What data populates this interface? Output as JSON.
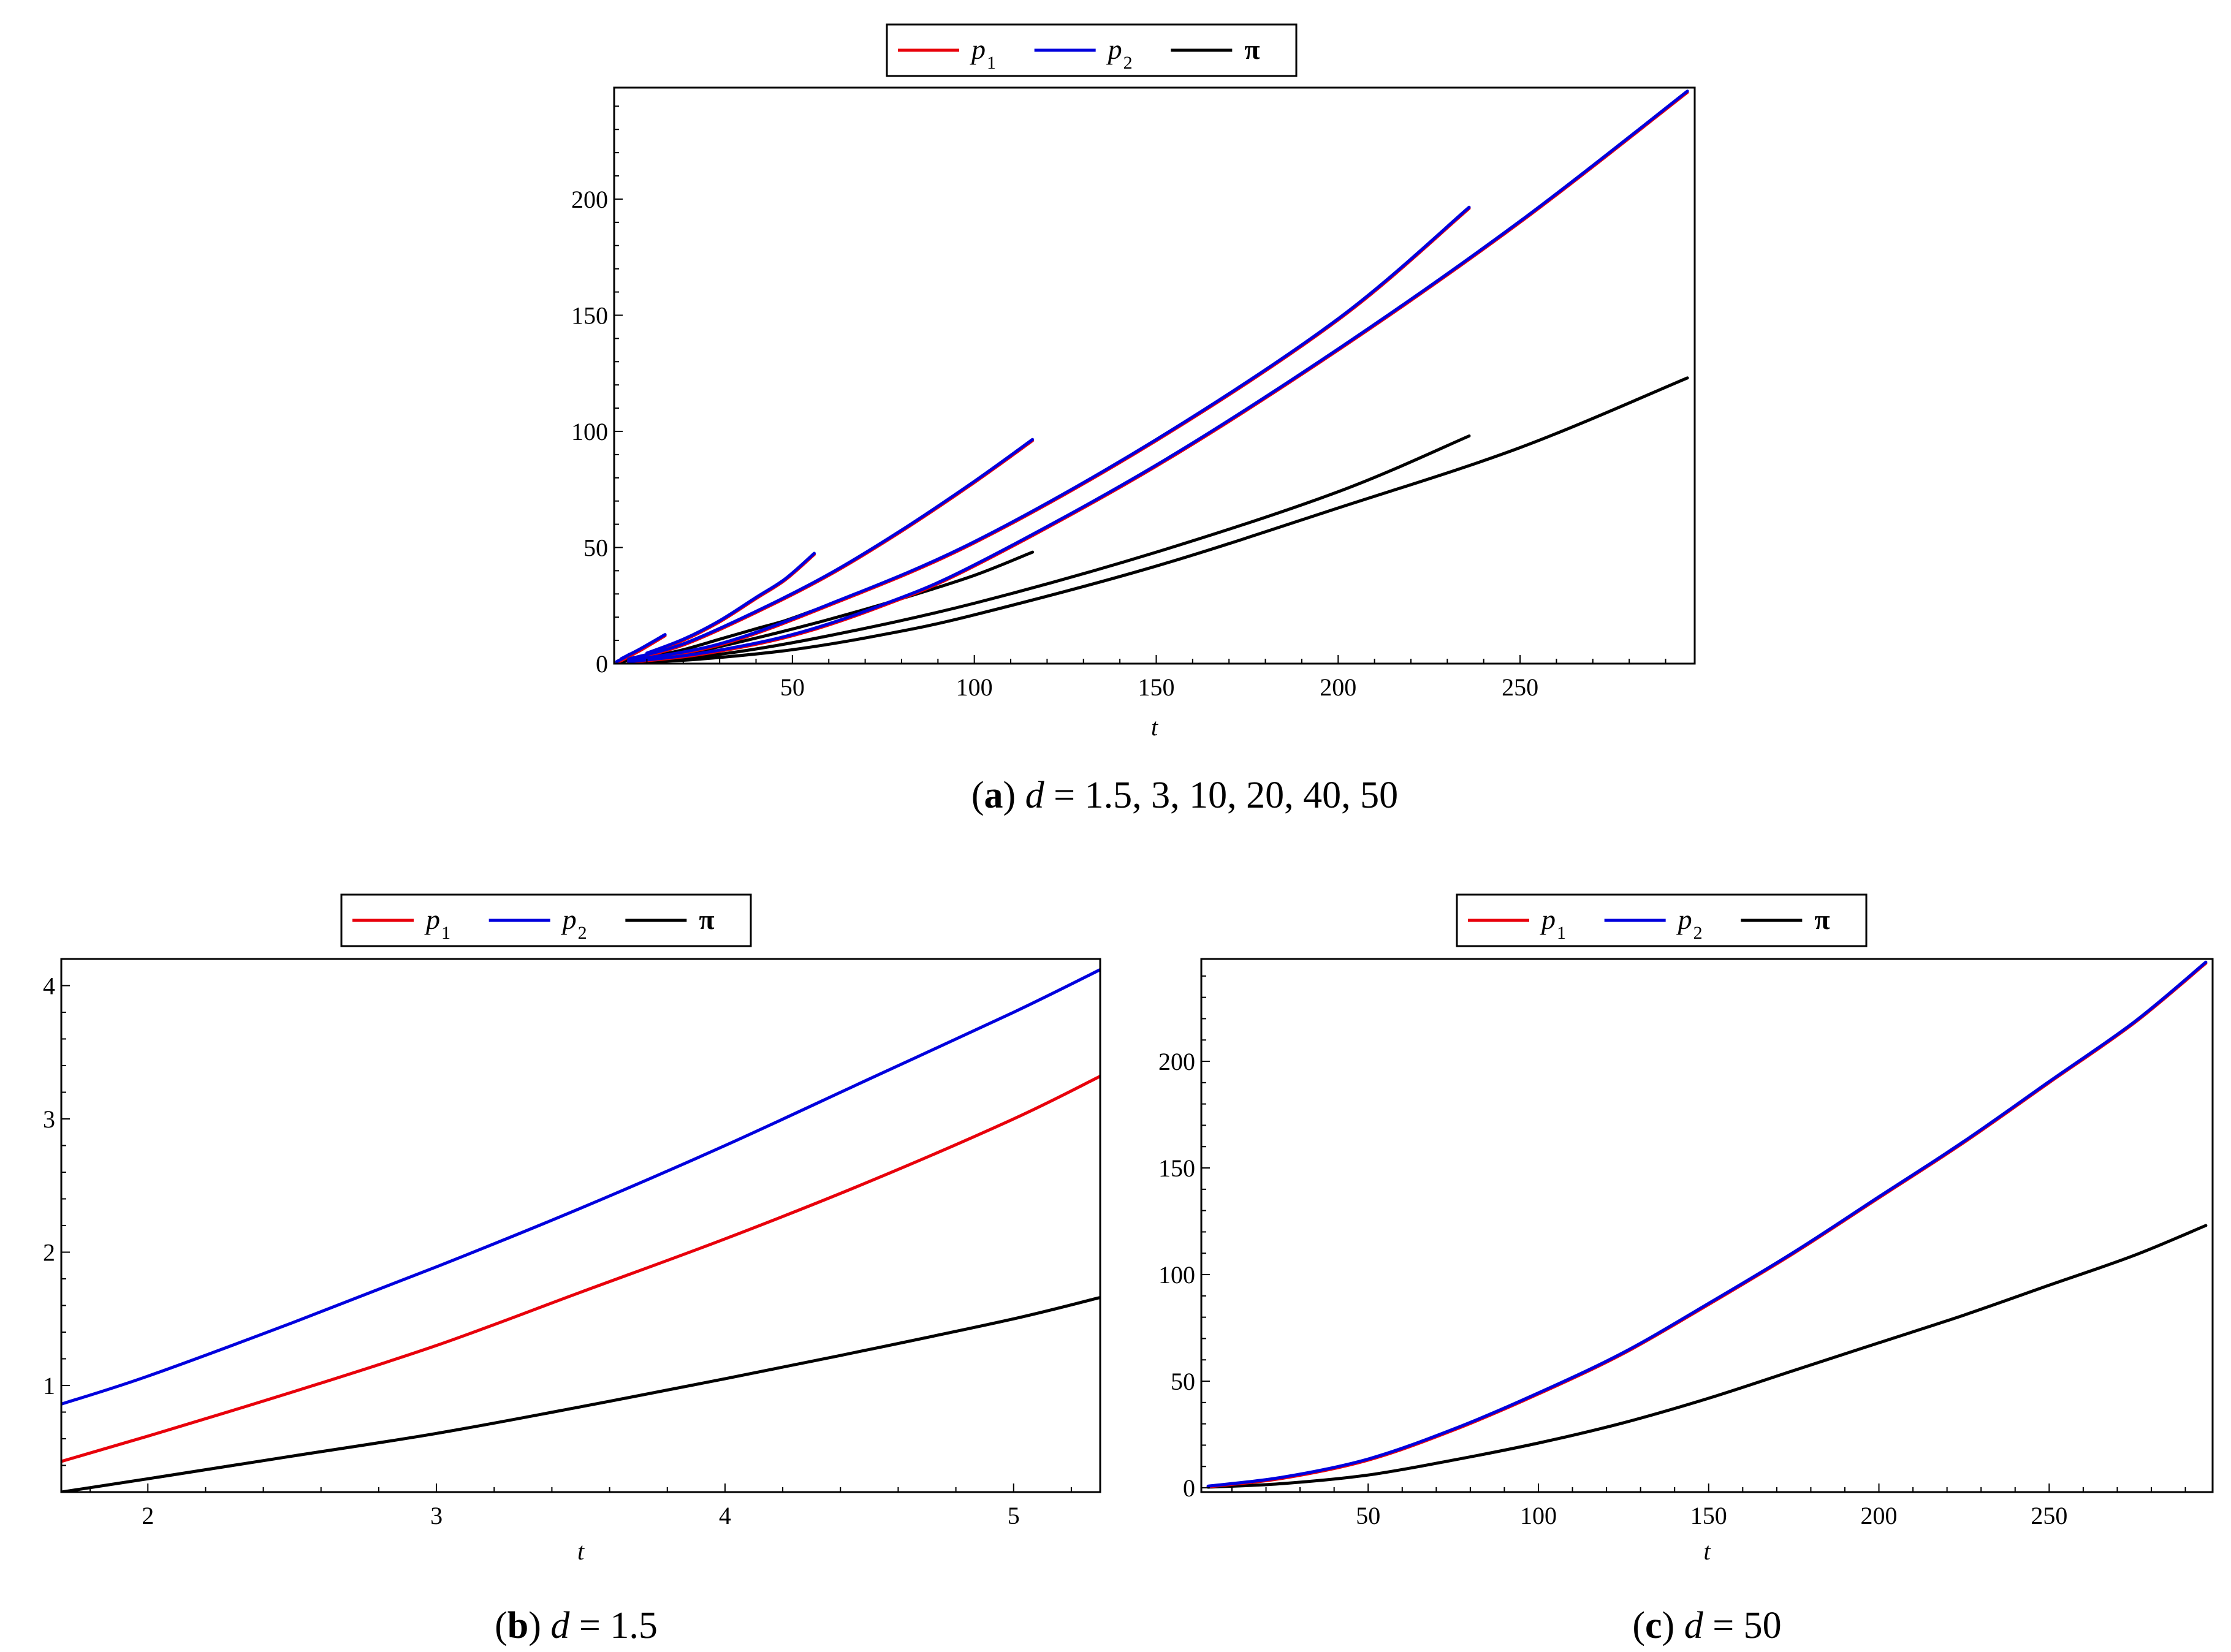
{
  "figure": {
    "legend": {
      "entries": [
        {
          "main": "p",
          "sub": "1",
          "color": "#e8000b"
        },
        {
          "main": "p",
          "sub": "2",
          "color": "#0000dd"
        },
        {
          "main": "π",
          "sub": "",
          "color": "#000000"
        }
      ]
    },
    "captions": {
      "a": {
        "open": "(",
        "letter": "a",
        "close": ")",
        "var": "d",
        "rest": " = 1.5, 3, 10, 20, 40, 50"
      },
      "b": {
        "open": "(",
        "letter": "b",
        "close": ")",
        "var": "d",
        "rest": " = 1.5"
      },
      "c": {
        "open": "(",
        "letter": "c",
        "close": ")",
        "var": "d",
        "rest": " = 50"
      }
    }
  },
  "chart_data": [
    {
      "id": "a",
      "type": "line",
      "xlabel": "t",
      "ylabel": "",
      "xlim": [
        1,
        298
      ],
      "ylim": [
        0,
        248
      ],
      "xticks": [
        50,
        100,
        150,
        200,
        250
      ],
      "yticks": [
        0,
        50,
        100,
        150,
        200
      ],
      "xminor": 10,
      "yminor": 10,
      "series": [
        {
          "name": "p1",
          "color": "#e8000b",
          "x": [
            1.7,
            3,
            4,
            5.3
          ],
          "y": [
            0.43,
            1.3,
            2.1,
            3.3
          ]
        },
        {
          "name": "p2",
          "color": "#0000dd",
          "x": [
            1.7,
            3,
            4,
            5.3
          ],
          "y": [
            0.86,
            1.95,
            2.85,
            4.1
          ]
        },
        {
          "name": "π",
          "color": "#000000",
          "x": [
            1.7,
            3,
            4,
            5.3
          ],
          "y": [
            0.2,
            0.65,
            1.05,
            1.65
          ]
        },
        {
          "name": "p1",
          "color": "#e8000b",
          "x": [
            3,
            8,
            15
          ],
          "y": [
            1.5,
            5.5,
            12
          ]
        },
        {
          "name": "p2",
          "color": "#0000dd",
          "x": [
            3,
            8,
            15
          ],
          "y": [
            2.2,
            6.2,
            12.5
          ]
        },
        {
          "name": "π",
          "color": "#000000",
          "x": [
            3,
            8,
            15
          ],
          "y": [
            0.8,
            2.8,
            6
          ]
        },
        {
          "name": "p1",
          "color": "#e8000b",
          "x": [
            10,
            20,
            30,
            40,
            48,
            56
          ],
          "y": [
            4,
            10,
            18,
            28,
            36,
            47
          ]
        },
        {
          "name": "p2",
          "color": "#0000dd",
          "x": [
            10,
            20,
            30,
            40,
            48,
            56
          ],
          "y": [
            4.5,
            10.5,
            18.5,
            28.5,
            36.5,
            47.5
          ]
        },
        {
          "name": "π",
          "color": "#000000",
          "x": [
            10,
            20,
            30,
            40,
            48,
            56
          ],
          "y": [
            2.5,
            6,
            10.5,
            15,
            18.5,
            23
          ]
        },
        {
          "name": "p1",
          "color": "#e8000b",
          "x": [
            5,
            20,
            40,
            60,
            80,
            100,
            116
          ],
          "y": [
            1.5,
            8,
            22,
            38,
            57,
            78,
            96
          ]
        },
        {
          "name": "p2",
          "color": "#0000dd",
          "x": [
            5,
            20,
            40,
            60,
            80,
            100,
            116
          ],
          "y": [
            2,
            8.5,
            22.5,
            38.5,
            57.5,
            78.5,
            96.5
          ]
        },
        {
          "name": "π",
          "color": "#000000",
          "x": [
            5,
            20,
            40,
            60,
            80,
            100,
            116
          ],
          "y": [
            0.8,
            4,
            11,
            19,
            28,
            38,
            48
          ]
        },
        {
          "name": "p1",
          "color": "#e8000b",
          "x": [
            5,
            30,
            60,
            100,
            150,
            200,
            236
          ],
          "y": [
            1,
            8,
            25,
            52,
            96,
            148,
            196
          ]
        },
        {
          "name": "p2",
          "color": "#0000dd",
          "x": [
            5,
            30,
            60,
            100,
            150,
            200,
            236
          ],
          "y": [
            1.3,
            8.5,
            25.5,
            52.5,
            96.5,
            148.5,
            196.5
          ]
        },
        {
          "name": "π",
          "color": "#000000",
          "x": [
            5,
            30,
            60,
            100,
            150,
            200,
            236
          ],
          "y": [
            0.5,
            4,
            12,
            26,
            48,
            74,
            98
          ]
        },
        {
          "name": "p1",
          "color": "#e8000b",
          "x": [
            5,
            25,
            50,
            75,
            100,
            150,
            200,
            250,
            296
          ],
          "y": [
            0.5,
            4,
            12,
            25,
            42,
            85,
            135,
            190,
            246
          ]
        },
        {
          "name": "p2",
          "color": "#0000dd",
          "x": [
            5,
            25,
            50,
            75,
            100,
            150,
            200,
            250,
            296
          ],
          "y": [
            0.8,
            4.5,
            12.5,
            25.5,
            42.5,
            85.5,
            135.5,
            190.5,
            246.5
          ]
        },
        {
          "name": "π",
          "color": "#000000",
          "x": [
            5,
            25,
            50,
            75,
            100,
            150,
            200,
            250,
            296
          ],
          "y": [
            0.3,
            2,
            6,
            12.5,
            21,
            42,
            67,
            93,
            123
          ]
        }
      ]
    },
    {
      "id": "b",
      "type": "line",
      "xlabel": "t",
      "ylabel": "",
      "xlim": [
        1.7,
        5.3
      ],
      "ylim": [
        0.2,
        4.2
      ],
      "xticks": [
        2,
        3,
        4,
        5
      ],
      "yticks": [
        1,
        2,
        3,
        4
      ],
      "xminor": 0.2,
      "yminor": 0.2,
      "series": [
        {
          "name": "p1",
          "color": "#e8000b",
          "x": [
            1.7,
            2,
            2.5,
            3,
            3.5,
            4,
            4.5,
            5,
            5.3
          ],
          "y": [
            0.43,
            0.62,
            0.95,
            1.3,
            1.7,
            2.1,
            2.53,
            3.0,
            3.32
          ]
        },
        {
          "name": "p2",
          "color": "#0000dd",
          "x": [
            1.7,
            2,
            2.5,
            3,
            3.5,
            4,
            4.5,
            5,
            5.3
          ],
          "y": [
            0.86,
            1.07,
            1.47,
            1.89,
            2.33,
            2.8,
            3.3,
            3.8,
            4.12
          ]
        },
        {
          "name": "π",
          "color": "#000000",
          "x": [
            1.7,
            2,
            2.5,
            3,
            3.5,
            4,
            4.5,
            5,
            5.3
          ],
          "y": [
            0.2,
            0.3,
            0.47,
            0.64,
            0.84,
            1.05,
            1.27,
            1.5,
            1.66
          ]
        }
      ]
    },
    {
      "id": "c",
      "type": "line",
      "xlabel": "t",
      "ylabel": "",
      "xlim": [
        1,
        298
      ],
      "ylim": [
        -2,
        248
      ],
      "xticks": [
        50,
        100,
        150,
        200,
        250
      ],
      "yticks": [
        0,
        50,
        100,
        150,
        200
      ],
      "xminor": 10,
      "yminor": 10,
      "series": [
        {
          "name": "p1",
          "color": "#e8000b",
          "x": [
            3,
            25,
            50,
            75,
            100,
            125,
            150,
            175,
            200,
            225,
            250,
            275,
            296
          ],
          "y": [
            0.5,
            4.5,
            13,
            27,
            44,
            63,
            86,
            110,
            136,
            162,
            190,
            218,
            246
          ]
        },
        {
          "name": "p2",
          "color": "#0000dd",
          "x": [
            3,
            25,
            50,
            75,
            100,
            125,
            150,
            175,
            200,
            225,
            250,
            275,
            296
          ],
          "y": [
            0.8,
            5,
            13.5,
            27.5,
            44.5,
            63.5,
            86.5,
            110.5,
            136.5,
            162.5,
            190.5,
            218.5,
            246.5
          ]
        },
        {
          "name": "π",
          "color": "#000000",
          "x": [
            3,
            25,
            50,
            75,
            100,
            125,
            150,
            175,
            200,
            225,
            250,
            275,
            296
          ],
          "y": [
            0.3,
            2,
            6,
            13,
            21,
            30.5,
            42,
            55,
            68,
            81,
            95,
            109,
            123
          ]
        }
      ]
    }
  ]
}
